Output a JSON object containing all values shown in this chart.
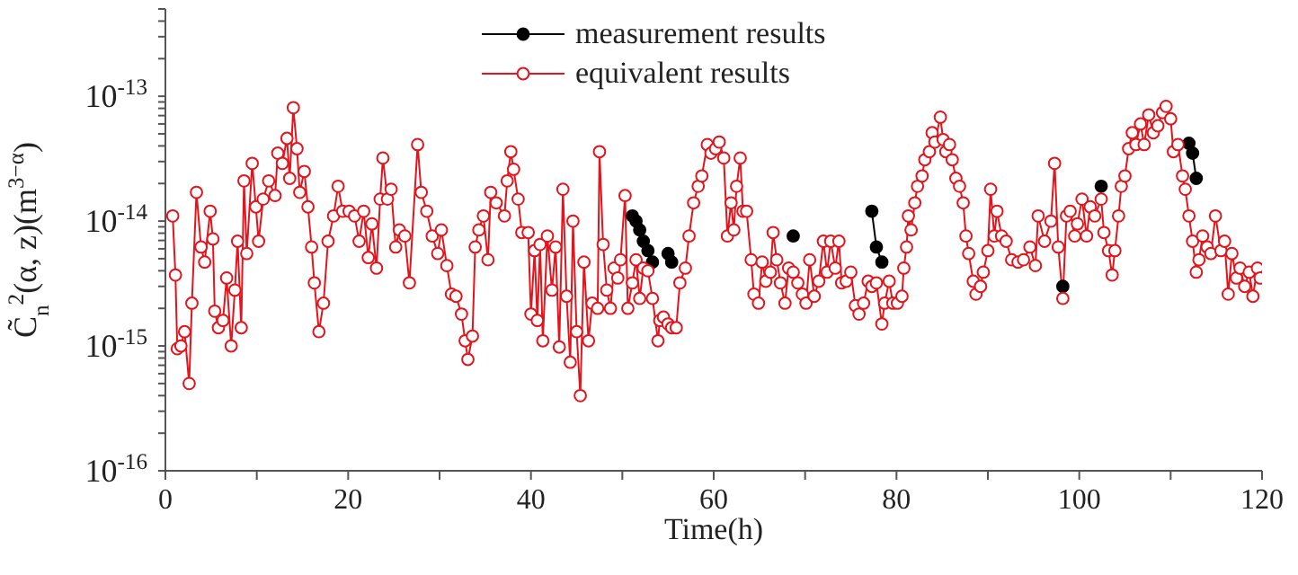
{
  "chart_data": {
    "type": "line",
    "xlabel": "Time(h)",
    "ylabel": "C̃$_{n}$$^{2}$(α, z)(m$^{3−α}$)",
    "log": "y",
    "legend": "top",
    "marker": "circle",
    "line_style": "solid",
    "xlim": [
      0,
      120
    ],
    "xticks": [
      0,
      {
        "value": 10,
        "label": null
      },
      20,
      {
        "value": 30,
        "label": null
      },
      40,
      {
        "value": 50,
        "label": null
      },
      60,
      {
        "value": 70,
        "label": null
      },
      80,
      {
        "value": 90,
        "label": null
      },
      100,
      {
        "value": 110,
        "label": null
      },
      120
    ],
    "ylim": [
      1e-16,
      5e-13
    ],
    "yticks": [
      {
        "value": 1e-16,
        "label": "10$^{-16}$"
      },
      {
        "value": 2e-16,
        "label": null
      },
      {
        "value": 3e-16,
        "label": null
      },
      {
        "value": 4e-16,
        "label": null
      },
      {
        "value": 5e-16,
        "label": null
      },
      {
        "value": 6e-16,
        "label": null
      },
      {
        "value": 7e-16,
        "label": null
      },
      {
        "value": 8e-16,
        "label": null
      },
      {
        "value": 9e-16,
        "label": null
      },
      {
        "value": 1e-15,
        "label": "10$^{-15}$"
      },
      {
        "value": 2e-15,
        "label": null
      },
      {
        "value": 3e-15,
        "label": null
      },
      {
        "value": 4e-15,
        "label": null
      },
      {
        "value": 5e-15,
        "label": null
      },
      {
        "value": 6e-15,
        "label": null
      },
      {
        "value": 7e-15,
        "label": null
      },
      {
        "value": 8e-15,
        "label": null
      },
      {
        "value": 9e-15,
        "label": null
      },
      {
        "value": 1e-14,
        "label": "10$^{-14}$"
      },
      {
        "value": 2e-14,
        "label": null
      },
      {
        "value": 3e-14,
        "label": null
      },
      {
        "value": 4e-14,
        "label": null
      },
      {
        "value": 5e-14,
        "label": null
      },
      {
        "value": 6e-14,
        "label": null
      },
      {
        "value": 7e-14,
        "label": null
      },
      {
        "value": 8e-14,
        "label": null
      },
      {
        "value": 9e-14,
        "label": null
      },
      {
        "value": 1e-13,
        "label": "10$^{-13}$"
      },
      {
        "value": 2e-13,
        "label": null
      },
      {
        "value": 3e-13,
        "label": null
      },
      {
        "value": 4e-13,
        "label": null
      },
      {
        "value": 5e-13,
        "label": null
      }
    ],
    "x": [
      0.8,
      1.1,
      1.3,
      1.7,
      2.1,
      2.6,
      2.9,
      3.4,
      3.9,
      4.3,
      4.9,
      5.2,
      5.4,
      5.8,
      6.3,
      6.7,
      7.2,
      7.6,
      7.9,
      8.3,
      8.6,
      8.9,
      9.5,
      9.9,
      10.2,
      10.7,
      11.3,
      12.0,
      12.3,
      12.8,
      13.3,
      13.6,
      14.0,
      14.4,
      14.7,
      15.2,
      15.6,
      16.0,
      16.3,
      16.8,
      17.3,
      17.8,
      18.4,
      18.9,
      19.4,
      20.1,
      20.7,
      21.2,
      21.7,
      22.2,
      22.6,
      23.1,
      23.5,
      23.8,
      24.3,
      24.7,
      25.2,
      25.6,
      26.2,
      26.7,
      27.6,
      28.0,
      28.6,
      29.2,
      29.8,
      30.2,
      30.8,
      31.3,
      31.8,
      32.4,
      32.8,
      33.1,
      33.6,
      33.9,
      34.3,
      34.8,
      35.3,
      35.6,
      36.2,
      37.1,
      37.4,
      37.8,
      38.1,
      38.6,
      39.0,
      39.7,
      40.0,
      40.4,
      40.7,
      41.0,
      41.3,
      41.8,
      42.3,
      42.7,
      43.1,
      43.5,
      43.9,
      44.3,
      44.6,
      45.0,
      45.4,
      45.8,
      46.3,
      46.7,
      47.3,
      47.5,
      47.9,
      48.3,
      48.7,
      49.1,
      49.5,
      49.8,
      50.3,
      50.6,
      51.1,
      51.5,
      51.9,
      52.3,
      52.8,
      53.3,
      53.9,
      54.1,
      54.5,
      55.0,
      55.4,
      55.9,
      56.3,
      56.9,
      57.3,
      57.8,
      58.3,
      58.7,
      59.3,
      59.7,
      60.2,
      60.6,
      61.1,
      61.5,
      61.9,
      62.2,
      62.5,
      62.9,
      63.2,
      63.6,
      64.1,
      64.4,
      64.9,
      65.3,
      65.7,
      66.2,
      66.5,
      66.9,
      67.3,
      67.8,
      68.2,
      68.7,
      69.2,
      69.7,
      70.1,
      70.5,
      71.0,
      71.5,
      72.0,
      72.4,
      72.8,
      73.3,
      73.7,
      74.0,
      74.5,
      75.0,
      75.5,
      75.9,
      76.4,
      76.9,
      77.3,
      77.8,
      78.4,
      78.7,
      79.2,
      79.6,
      80.1,
      80.6,
      80.8,
      81.1,
      81.3,
      81.6,
      82.0,
      82.3,
      82.8,
      83.1,
      83.6,
      83.9,
      84.2,
      84.8,
      85.1,
      85.4,
      85.8,
      86.1,
      86.5,
      86.9,
      87.3,
      87.6,
      87.9,
      88.4,
      88.7,
      89.2,
      89.5,
      90.0,
      90.3,
      90.7,
      91.0,
      91.5,
      92.0,
      92.6,
      93.3,
      93.9,
      94.6,
      95.2,
      95.5,
      96.2,
      96.9,
      97.3,
      97.7,
      98.2,
      98.6,
      99.0,
      99.5,
      99.8,
      100.3,
      100.8,
      101.2,
      101.7,
      102.4,
      102.7,
      103.2,
      103.6,
      103.9,
      104.3,
      104.6,
      105.0,
      105.4,
      105.8,
      106.2,
      106.7,
      107.1,
      107.6,
      108.1,
      108.6,
      109.1,
      109.5,
      110.0,
      110.3,
      110.8,
      111.3,
      111.6,
      112.0,
      112.4,
      112.8,
      113.1,
      113.5,
      114.0,
      114.4,
      114.9,
      115.5,
      115.9,
      116.3,
      116.7,
      117.2,
      117.6,
      118.1,
      118.6,
      119.0,
      119.5,
      119.8
    ],
    "series": [
      {
        "name": "measurement results",
        "color": "#000000",
        "x": [
          51.1,
          51.5,
          51.9,
          52.3,
          52.8,
          53.3,
          54.1,
          55.0,
          55.4,
          60.0,
          68.7,
          72.0,
          77.3,
          77.8,
          78.4,
          90.0,
          98.2,
          100.0,
          102.4,
          105.0,
          112.0,
          112.4,
          112.8
        ],
        "values": [
          1.1e-14,
          1e-14,
          8.5e-15,
          6.9e-15,
          5.8e-15,
          4.7e-15,
          null,
          5.5e-15,
          4.7e-15,
          null,
          7.6e-15,
          null,
          1.2e-14,
          6.2e-15,
          4.7e-15,
          null,
          3e-15,
          null,
          1.9e-14,
          null,
          4.2e-14,
          3.5e-14,
          2.2e-14
        ]
      },
      {
        "name": "equivalent results",
        "color": "#e3141b",
        "values": [
          1.1e-14,
          3.7e-15,
          9.5e-16,
          1e-15,
          1.3e-15,
          5e-16,
          2.2e-15,
          1.7e-14,
          6.2e-15,
          4.7e-15,
          1.2e-14,
          7.2e-15,
          1.9e-15,
          1.4e-15,
          1.6e-15,
          3.5e-15,
          1e-15,
          2.8e-15,
          6.9e-15,
          1.4e-15,
          2.1e-14,
          5.5e-15,
          2.9e-14,
          1.3e-14,
          6.9e-15,
          1.5e-14,
          2.1e-14,
          1.6e-14,
          3.5e-14,
          2.9e-14,
          4.6e-14,
          2.2e-14,
          8.1e-14,
          3.8e-14,
          1.7e-14,
          2.5e-14,
          1.3e-14,
          6.2e-15,
          3.2e-15,
          1.3e-15,
          2.2e-15,
          6.9e-15,
          1.1e-14,
          1.9e-14,
          1.2e-14,
          1.2e-14,
          1.1e-14,
          6.9e-15,
          1.2e-14,
          5.1e-15,
          9.5e-15,
          4.2e-15,
          1.5e-14,
          3.2e-14,
          1.5e-14,
          1.8e-14,
          6.2e-15,
          8.5e-15,
          7.6e-15,
          3.2e-15,
          4.1e-14,
          1.7e-14,
          1.2e-14,
          7.6e-15,
          5.5e-15,
          8.5e-15,
          4.4e-15,
          2.6e-15,
          2.5e-15,
          1.8e-15,
          1.1e-15,
          7.8e-16,
          1.2e-15,
          6.2e-15,
          8.5e-15,
          1.1e-14,
          4.9e-15,
          1.7e-14,
          1.4e-14,
          1.1e-14,
          2.1e-14,
          3.6e-14,
          2.6e-14,
          1.5e-14,
          8.1e-15,
          8.1e-15,
          1.8e-15,
          5.8e-15,
          1.6e-15,
          6.5e-15,
          1.1e-15,
          7.6e-15,
          2.8e-15,
          6.2e-15,
          9.8e-16,
          1.8e-14,
          2.5e-15,
          7.4e-16,
          1e-14,
          1.3e-15,
          4e-16,
          4.7e-15,
          1.1e-15,
          2.2e-15,
          2e-15,
          3.6e-14,
          6.5e-15,
          2.8e-15,
          2e-15,
          4.2e-15,
          3.5e-15,
          4.9e-15,
          1.6e-14,
          2e-15,
          3.2e-15,
          4.9e-15,
          2.4e-15,
          4.2e-15,
          4e-15,
          2.4e-15,
          1.1e-15,
          1.6e-15,
          1.7e-15,
          1.5e-15,
          1.4e-15,
          1.4e-15,
          3.2e-15,
          4.2e-15,
          7.6e-15,
          1.4e-14,
          1.9e-14,
          2.3e-14,
          4.1e-14,
          3.5e-14,
          3.8e-14,
          4.3e-14,
          3.2e-14,
          7.6e-15,
          1.4e-14,
          8.5e-15,
          1.9e-14,
          3.2e-14,
          1.2e-14,
          1.2e-14,
          4.9e-15,
          2.6e-15,
          2.2e-15,
          4.7e-15,
          3.3e-15,
          3.9e-15,
          8.1e-15,
          4.9e-15,
          3.2e-15,
          2.2e-15,
          4.2e-15,
          3.9e-15,
          3.2e-15,
          2.6e-15,
          2.2e-15,
          4.9e-15,
          2.5e-15,
          3.3e-15,
          6.9e-15,
          3.9e-15,
          6.9e-15,
          4.2e-15,
          6.9e-15,
          3.2e-15,
          3.3e-15,
          3.9e-15,
          2.1e-15,
          1.8e-15,
          2.2e-15,
          3.3e-15,
          3e-15,
          3.2e-15,
          1.5e-15,
          2.2e-15,
          3.3e-15,
          2.2e-15,
          2.2e-15,
          2.5e-15,
          4.2e-15,
          6.2e-15,
          1.1e-14,
          8.5e-15,
          1.4e-14,
          1.9e-14,
          2.3e-14,
          3.1e-14,
          3.6e-14,
          5.1e-14,
          4.3e-14,
          6.8e-14,
          4.5e-14,
          3.6e-14,
          4.1e-14,
          3.1e-14,
          2.2e-14,
          1.9e-14,
          1.4e-14,
          7.6e-15,
          5.5e-15,
          3.3e-15,
          2.6e-15,
          3e-15,
          3.9e-15,
          5.8e-15,
          1.8e-14,
          7.6e-15,
          1.2e-14,
          7.6e-15,
          6.9e-15,
          4.9e-15,
          4.7e-15,
          4.9e-15,
          6.2e-15,
          4.4e-15,
          1.1e-14,
          6.9e-15,
          1e-14,
          2.9e-14,
          6.2e-15,
          2.4e-15,
          1.1e-14,
          1.2e-14,
          7.6e-15,
          9.5e-15,
          1.5e-14,
          7.6e-15,
          1.3e-14,
          1.1e-14,
          1.5e-14,
          8.1e-15,
          5.8e-15,
          3.7e-15,
          5.8e-15,
          1.1e-14,
          1.9e-14,
          2.3e-14,
          3.8e-14,
          5.1e-14,
          4.1e-14,
          6e-14,
          4.1e-14,
          7.1e-14,
          5.1e-14,
          5.8e-14,
          7.4e-14,
          8.3e-14,
          6.6e-14,
          3.6e-14,
          4.1e-14,
          2.3e-14,
          1.8e-14,
          1.1e-14,
          6.9e-15,
          3.9e-15,
          4.9e-15,
          7.6e-15,
          6.2e-15,
          5.5e-15,
          1.1e-14,
          5.8e-15,
          6.9e-15,
          2.6e-15,
          5.5e-15,
          3.5e-15,
          4.2e-15,
          3e-15,
          3.9e-15,
          2.5e-15,
          4.2e-15,
          3.5e-15
        ]
      }
    ]
  }
}
